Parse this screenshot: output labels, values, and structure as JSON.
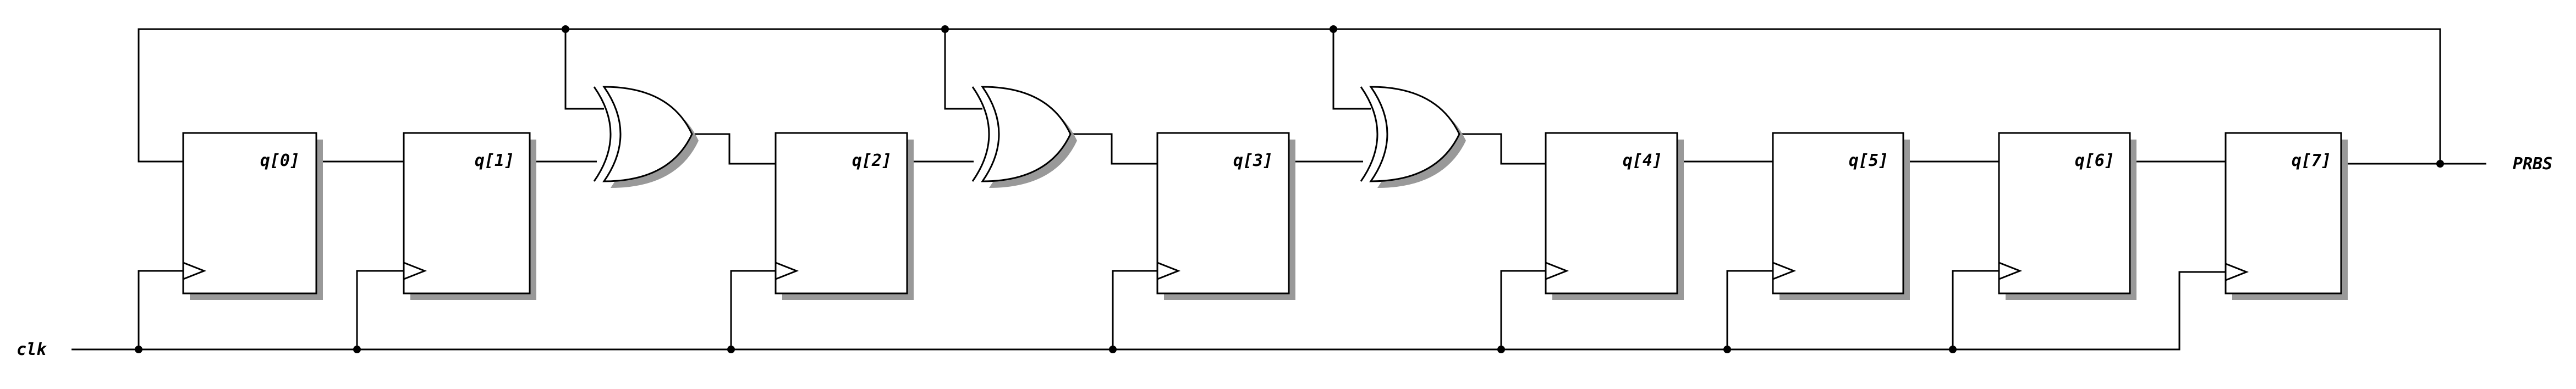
{
  "diagram": {
    "registers": [
      {
        "label": "q[0]"
      },
      {
        "label": "q[1]"
      },
      {
        "label": "q[2]"
      },
      {
        "label": "q[3]"
      },
      {
        "label": "q[4]"
      },
      {
        "label": "q[5]"
      },
      {
        "label": "q[6]"
      },
      {
        "label": "q[7]"
      }
    ],
    "gates": [
      {
        "type": "XOR"
      },
      {
        "type": "XOR"
      },
      {
        "type": "XOR"
      }
    ],
    "input_label": "clk",
    "output_label": "PRBS",
    "colors": {
      "line": "#000000",
      "shadow": "#999999",
      "fill": "#ffffff"
    }
  }
}
